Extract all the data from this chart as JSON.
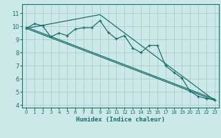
{
  "xlabel": "Humidex (Indice chaleur)",
  "bg_color": "#cce8e8",
  "grid_color": "#aacccc",
  "line_color": "#1a6e6e",
  "xlim": [
    -0.5,
    23.5
  ],
  "ylim": [
    3.8,
    11.7
  ],
  "yticks": [
    4,
    5,
    6,
    7,
    8,
    9,
    10,
    11
  ],
  "xticks": [
    0,
    1,
    2,
    3,
    4,
    5,
    6,
    7,
    8,
    9,
    10,
    11,
    12,
    13,
    14,
    15,
    16,
    17,
    18,
    19,
    20,
    21,
    22,
    23
  ],
  "line1_x": [
    0,
    1,
    2,
    3,
    4,
    5,
    6,
    7,
    8,
    9,
    10,
    11,
    12,
    13,
    14,
    15,
    16,
    17,
    18,
    19,
    20,
    21,
    22,
    23
  ],
  "line1_y": [
    9.85,
    10.2,
    10.05,
    9.2,
    9.5,
    9.3,
    9.8,
    9.9,
    9.9,
    10.45,
    9.55,
    9.05,
    9.3,
    8.35,
    8.0,
    8.55,
    8.55,
    7.0,
    6.5,
    6.05,
    5.05,
    4.65,
    4.5,
    4.4
  ],
  "line2_x": [
    0,
    23
  ],
  "line2_y": [
    9.85,
    4.35
  ],
  "line3_x": [
    0,
    23
  ],
  "line3_y": [
    9.95,
    4.45
  ],
  "line4_x": [
    0,
    9,
    23
  ],
  "line4_y": [
    9.85,
    10.9,
    4.35
  ]
}
